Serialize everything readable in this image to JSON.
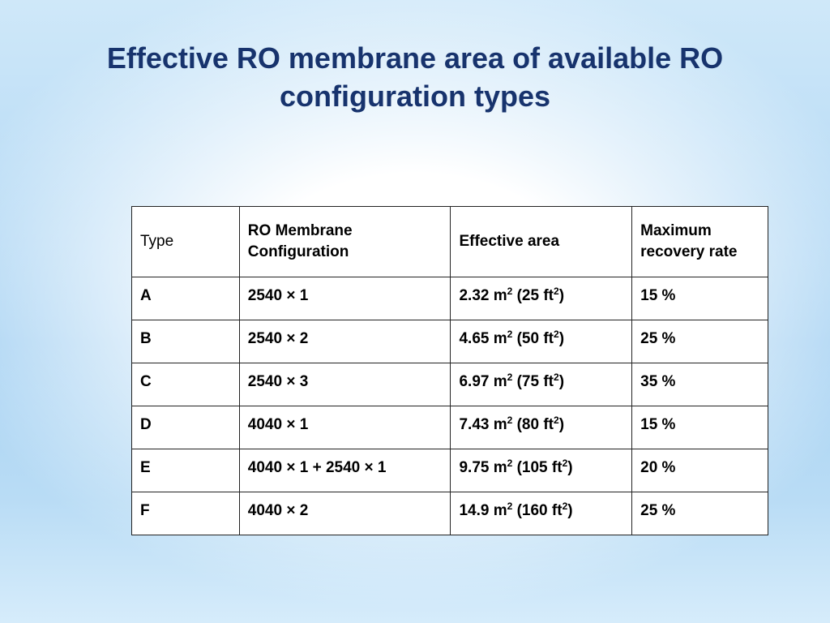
{
  "slide": {
    "title_line1": "Effective RO membrane area of available RO",
    "title_line2": "configuration types"
  },
  "table": {
    "headers": {
      "type": "Type",
      "config_line1": "RO Membrane",
      "config_line2": "Configuration",
      "area": "Effective area",
      "rate_line1": "Maximum",
      "rate_line2": "recovery rate"
    },
    "rows": [
      {
        "type": "A",
        "config": "2540 × 1",
        "area_m": "2.32 m",
        "area_ft": " (25 ft",
        "rate": "15 %"
      },
      {
        "type": "B",
        "config": "2540 × 2",
        "area_m": "4.65 m",
        "area_ft": " (50 ft",
        "rate": "25 %"
      },
      {
        "type": "C",
        "config": "2540 × 3",
        "area_m": "6.97 m",
        "area_ft": " (75 ft",
        "rate": "35 %"
      },
      {
        "type": "D",
        "config": "4040 × 1",
        "area_m": "7.43 m",
        "area_ft": " (80 ft",
        "rate": "15 %"
      },
      {
        "type": "E",
        "config": "4040 × 1 + 2540 × 1",
        "area_m": "9.75 m",
        "area_ft": " (105 ft",
        "rate": "20 %"
      },
      {
        "type": "F",
        "config": "4040 × 2",
        "area_m": "14.9 m",
        "area_ft": " (160 ft",
        "rate": "25 %"
      }
    ],
    "exponent": "2",
    "close_paren": ")"
  },
  "colors": {
    "title": "#17336d",
    "background_edge": "#a9d3f3"
  }
}
